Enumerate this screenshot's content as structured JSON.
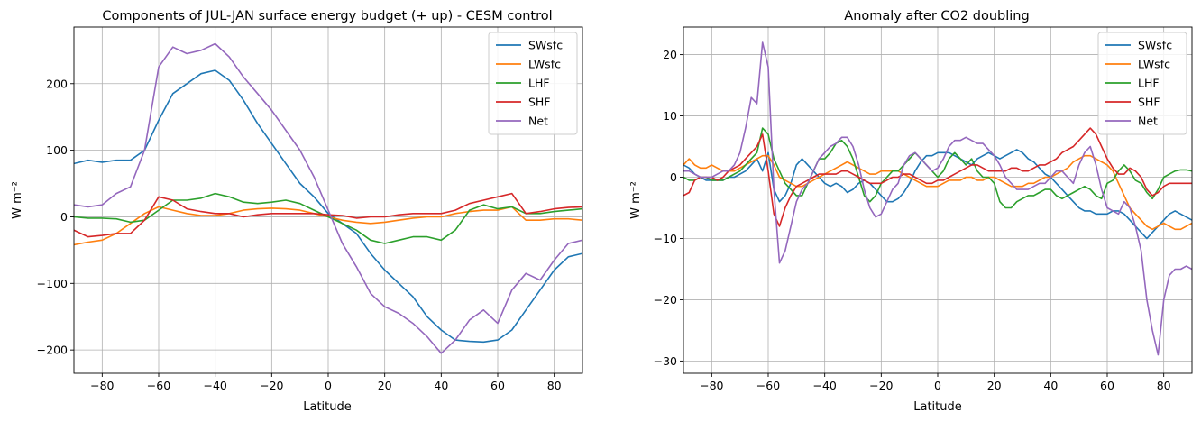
{
  "chart_data": [
    {
      "type": "line",
      "title": "Components of JUL-JAN surface energy budget (+ up) - CESM control",
      "xlabel": "Latitude",
      "ylabel": "W m⁻²",
      "xlim": [
        -90,
        90
      ],
      "ylim": [
        -235,
        285
      ],
      "xticks": [
        -80,
        -60,
        -40,
        -20,
        0,
        20,
        40,
        60,
        80
      ],
      "xtick_labels": [
        "−80",
        "−60",
        "−40",
        "−20",
        "0",
        "20",
        "40",
        "60",
        "80"
      ],
      "yticks": [
        -200,
        -100,
        0,
        100,
        200
      ],
      "ytick_labels": [
        "−200",
        "−100",
        "0",
        "100",
        "200"
      ],
      "grid": true,
      "legend_position": "top-right",
      "x": [
        -90,
        -85,
        -80,
        -75,
        -70,
        -65,
        -60,
        -55,
        -50,
        -45,
        -40,
        -35,
        -30,
        -25,
        -20,
        -15,
        -10,
        -5,
        0,
        5,
        10,
        15,
        20,
        25,
        30,
        35,
        40,
        45,
        50,
        55,
        60,
        65,
        70,
        75,
        80,
        85,
        90
      ],
      "series": [
        {
          "name": "SWsfc",
          "color": "#1f77b4",
          "values": [
            80,
            85,
            82,
            85,
            85,
            100,
            145,
            185,
            200,
            215,
            220,
            205,
            175,
            140,
            110,
            80,
            50,
            30,
            5,
            -10,
            -25,
            -55,
            -80,
            -100,
            -120,
            -150,
            -170,
            -185,
            -187,
            -188,
            -185,
            -170,
            -140,
            -110,
            -80,
            -60,
            -55
          ]
        },
        {
          "name": "LWsfc",
          "color": "#ff7f0e",
          "values": [
            -42,
            -38,
            -35,
            -25,
            -10,
            5,
            15,
            10,
            5,
            2,
            2,
            5,
            10,
            12,
            13,
            12,
            10,
            5,
            0,
            -5,
            -8,
            -10,
            -8,
            -5,
            -2,
            0,
            0,
            5,
            8,
            10,
            10,
            15,
            -5,
            -5,
            -3,
            -3,
            -5
          ]
        },
        {
          "name": "LHF",
          "color": "#2ca02c",
          "values": [
            0,
            -2,
            -2,
            -3,
            -8,
            -5,
            10,
            25,
            25,
            28,
            35,
            30,
            22,
            20,
            22,
            25,
            20,
            10,
            0,
            -10,
            -20,
            -35,
            -40,
            -35,
            -30,
            -30,
            -35,
            -20,
            10,
            18,
            12,
            15,
            5,
            5,
            8,
            10,
            12
          ]
        },
        {
          "name": "SHF",
          "color": "#d62728",
          "values": [
            -20,
            -30,
            -28,
            -25,
            -25,
            -5,
            30,
            25,
            12,
            8,
            5,
            5,
            0,
            3,
            5,
            5,
            5,
            5,
            3,
            2,
            -2,
            0,
            0,
            3,
            5,
            5,
            5,
            10,
            20,
            25,
            30,
            35,
            5,
            8,
            12,
            14,
            15
          ]
        },
        {
          "name": "Net",
          "color": "#9467bd",
          "values": [
            18,
            15,
            18,
            35,
            45,
            100,
            225,
            255,
            245,
            250,
            260,
            240,
            210,
            185,
            160,
            130,
            100,
            60,
            10,
            -40,
            -75,
            -115,
            -135,
            -145,
            -160,
            -180,
            -205,
            -185,
            -155,
            -140,
            -160,
            -110,
            -85,
            -95,
            -65,
            -40,
            -35
          ]
        }
      ]
    },
    {
      "type": "line",
      "title": "Anomaly after CO2 doubling",
      "xlabel": "Latitude",
      "ylabel": "W m⁻²",
      "xlim": [
        -90,
        90
      ],
      "ylim": [
        -32,
        24.5
      ],
      "xticks": [
        -80,
        -60,
        -40,
        -20,
        0,
        20,
        40,
        60,
        80
      ],
      "xtick_labels": [
        "−80",
        "−60",
        "−40",
        "−20",
        "0",
        "20",
        "40",
        "60",
        "80"
      ],
      "yticks": [
        -30,
        -20,
        -10,
        0,
        10,
        20
      ],
      "ytick_labels": [
        "−30",
        "−20",
        "−10",
        "0",
        "10",
        "20"
      ],
      "grid": true,
      "legend_position": "top-right",
      "x": [
        -90,
        -88,
        -86,
        -84,
        -82,
        -80,
        -78,
        -76,
        -74,
        -72,
        -70,
        -68,
        -66,
        -64,
        -62,
        -60,
        -58,
        -56,
        -54,
        -52,
        -50,
        -48,
        -46,
        -44,
        -42,
        -40,
        -38,
        -36,
        -34,
        -32,
        -30,
        -28,
        -26,
        -24,
        -22,
        -20,
        -18,
        -16,
        -14,
        -12,
        -10,
        -8,
        -6,
        -4,
        -2,
        0,
        2,
        4,
        6,
        8,
        10,
        12,
        14,
        16,
        18,
        20,
        22,
        24,
        26,
        28,
        30,
        32,
        34,
        36,
        38,
        40,
        42,
        44,
        46,
        48,
        50,
        52,
        54,
        56,
        58,
        60,
        62,
        64,
        66,
        68,
        70,
        72,
        74,
        76,
        78,
        80,
        82,
        84,
        86,
        88,
        90
      ],
      "series": [
        {
          "name": "SWsfc",
          "color": "#1f77b4",
          "values": [
            2,
            1.5,
            0.5,
            0,
            -0.5,
            -0.5,
            -0.5,
            -0.5,
            0,
            0,
            0.5,
            1,
            2,
            3,
            1,
            4,
            -2,
            -4,
            -3,
            -1,
            2,
            3,
            2,
            1,
            0,
            -1,
            -1.5,
            -1,
            -1.5,
            -2.5,
            -2,
            -1,
            -0.5,
            -1,
            -2,
            -3,
            -4,
            -4,
            -3.5,
            -2.5,
            -1,
            1,
            2.5,
            3.5,
            3.5,
            4,
            4,
            4,
            3.5,
            3,
            2.5,
            2,
            3,
            3.5,
            4,
            3.5,
            3,
            3.5,
            4,
            4.5,
            4,
            3,
            2.5,
            1.5,
            0.5,
            0,
            -1,
            -2,
            -3,
            -4,
            -5,
            -5.5,
            -5.5,
            -6,
            -6,
            -6,
            -5.5,
            -5.5,
            -6,
            -7,
            -8,
            -9,
            -10,
            -9,
            -8,
            -7,
            -6,
            -5.5,
            -6,
            -6.5,
            -7
          ]
        },
        {
          "name": "LWsfc",
          "color": "#ff7f0e",
          "values": [
            2,
            3,
            2,
            1.5,
            1.5,
            2,
            1.5,
            1,
            1,
            1,
            1.5,
            2,
            2.5,
            3,
            3.5,
            3.5,
            2,
            0,
            -0.5,
            -1,
            -1.5,
            -1.5,
            -1,
            -0.5,
            0,
            0.5,
            1,
            1.5,
            2,
            2.5,
            2,
            1.5,
            1,
            0.5,
            0.5,
            1,
            1,
            1,
            1,
            0.5,
            0,
            -0.5,
            -1,
            -1.5,
            -1.5,
            -1.5,
            -1,
            -0.5,
            -0.5,
            -0.5,
            0,
            0,
            -0.5,
            -0.5,
            0,
            0,
            -0.5,
            -1,
            -1.5,
            -1.5,
            -1.5,
            -1,
            -1,
            -0.5,
            0,
            0,
            0.5,
            1,
            1.5,
            2.5,
            3,
            3.5,
            3.5,
            3,
            2.5,
            2,
            1,
            -1,
            -3,
            -5,
            -6,
            -7,
            -8,
            -8.5,
            -8,
            -7.5,
            -8,
            -8.5,
            -8.5,
            -8,
            -7.5
          ]
        },
        {
          "name": "LHF",
          "color": "#2ca02c",
          "values": [
            0,
            -0.5,
            -0.5,
            0,
            0,
            -0.5,
            -0.5,
            -0.5,
            0,
            0.5,
            1,
            2,
            3,
            4,
            8,
            7,
            3,
            1,
            -1,
            -2,
            -3,
            -3,
            -1,
            1,
            3,
            3,
            4,
            5.5,
            6,
            5,
            3,
            0,
            -3,
            -4,
            -3,
            -1,
            0,
            1,
            1,
            2,
            3,
            4,
            3,
            2,
            1,
            0,
            1,
            3,
            4,
            3,
            2,
            3,
            1,
            0,
            0,
            -1,
            -4,
            -5,
            -5,
            -4,
            -3.5,
            -3,
            -3,
            -2.5,
            -2,
            -2,
            -3,
            -3.5,
            -3,
            -2.5,
            -2,
            -1.5,
            -2,
            -3,
            -3.5,
            -1,
            -0.5,
            1,
            2,
            1,
            -0.5,
            -1,
            -2.5,
            -3.5,
            -2,
            0,
            0.5,
            1,
            1.2,
            1.2,
            1
          ]
        },
        {
          "name": "SHF",
          "color": "#d62728",
          "values": [
            -3,
            -2.5,
            -0.5,
            0,
            0,
            0,
            -0.5,
            0,
            1,
            1.5,
            2,
            3,
            4,
            5,
            7,
            1,
            -6,
            -8,
            -5,
            -3,
            -1.5,
            -1,
            -0.5,
            0,
            0.5,
            0.5,
            0.5,
            0.5,
            1,
            1,
            0.5,
            0,
            -0.5,
            -1,
            -1,
            -1,
            -0.5,
            0,
            0,
            0.5,
            0.5,
            0,
            -0.5,
            -1,
            -1,
            -0.5,
            -0.5,
            0,
            0.5,
            1,
            1.5,
            2,
            2,
            1.5,
            1,
            1,
            1,
            1,
            1.5,
            1.5,
            1,
            1,
            1.5,
            2,
            2,
            2.5,
            3,
            4,
            4.5,
            5,
            6,
            7,
            8,
            7,
            5,
            3,
            1.5,
            0.5,
            0.5,
            1.5,
            1,
            0,
            -2,
            -3,
            -2.5,
            -1.5,
            -1,
            -1,
            -1,
            -1,
            -1
          ]
        },
        {
          "name": "Net",
          "color": "#9467bd",
          "values": [
            1,
            1,
            0.5,
            0,
            0,
            0,
            0.5,
            1,
            1,
            2,
            4,
            8,
            13,
            12,
            22,
            18,
            -2,
            -14,
            -12,
            -8,
            -4,
            -2,
            -1,
            1,
            3,
            4,
            5,
            5.5,
            6.5,
            6.5,
            5,
            2,
            -2,
            -5,
            -6.5,
            -6,
            -4,
            -2,
            -1,
            2,
            3.5,
            4,
            3,
            2,
            1,
            1.5,
            3,
            5,
            6,
            6,
            6.5,
            6,
            5.5,
            5.5,
            4.5,
            3.5,
            2,
            0,
            -1,
            -2,
            -2,
            -2,
            -1.5,
            -1,
            -1,
            0,
            1,
            1,
            0,
            -1,
            2,
            4,
            5,
            2,
            -2,
            -5,
            -5.5,
            -6,
            -4,
            -5,
            -8,
            -12,
            -20,
            -25,
            -29,
            -20,
            -16,
            -15,
            -15,
            -14.5,
            -15
          ]
        }
      ]
    }
  ]
}
